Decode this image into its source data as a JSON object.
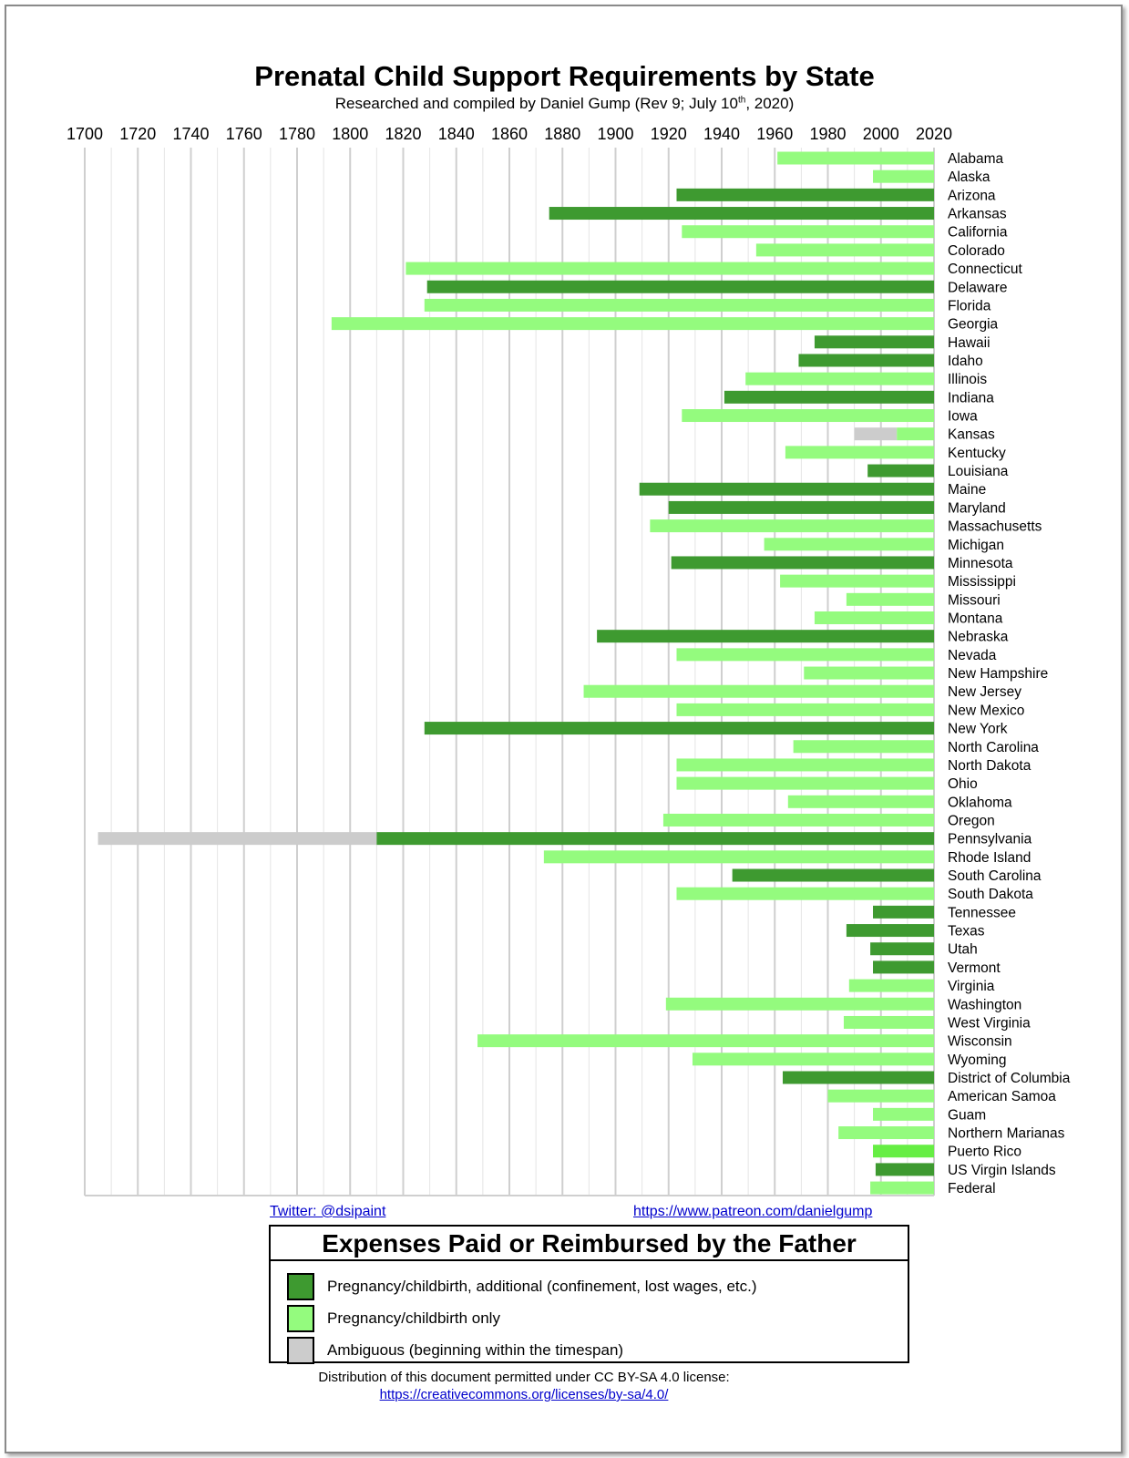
{
  "colors": {
    "additional": "#3e9a30",
    "childbirth_only": "#94fb7e",
    "ambiguous": "#cccccc",
    "puerto_rico": "#66ee44",
    "grid": "#cfcfcf",
    "link": "#0000cc"
  },
  "header": {
    "title": "Prenatal Child Support Requirements by State",
    "subtitle_prefix": "Researched and compiled by Daniel Gump (Rev 9; July 10",
    "subtitle_sup": "th",
    "subtitle_suffix": ", 2020)"
  },
  "links": {
    "twitter": "Twitter: @dsipaint",
    "patreon": "https://www.patreon.com/danielgump"
  },
  "legend": {
    "title": "Expenses Paid or Reimbursed by the Father",
    "items": [
      {
        "label": "Pregnancy/childbirth, additional (confinement, lost wages, etc.)",
        "color": "#3e9a30"
      },
      {
        "label": "Pregnancy/childbirth only",
        "color": "#94fb7e"
      },
      {
        "label": "Ambiguous (beginning within the timespan)",
        "color": "#cccccc"
      }
    ]
  },
  "footer": {
    "license_text": "Distribution of this document permitted under CC BY-SA 4.0 license:",
    "license_url": "https://creativecommons.org/licenses/by-sa/4.0/"
  },
  "chart_data": {
    "type": "bar",
    "orientation": "horizontal",
    "title": "Prenatal Child Support Requirements by State",
    "xlim": [
      1700,
      2020
    ],
    "x_ticks": [
      1700,
      1720,
      1740,
      1760,
      1780,
      1800,
      1820,
      1840,
      1860,
      1880,
      1900,
      1920,
      1940,
      1960,
      1980,
      2000,
      2020
    ],
    "x_minor_step": 10,
    "x_axis_position": "top",
    "grid": true,
    "categories": [
      "Alabama",
      "Alaska",
      "Arizona",
      "Arkansas",
      "California",
      "Colorado",
      "Connecticut",
      "Delaware",
      "Florida",
      "Georgia",
      "Hawaii",
      "Idaho",
      "Illinois",
      "Indiana",
      "Iowa",
      "Kansas",
      "Kentucky",
      "Louisiana",
      "Maine",
      "Maryland",
      "Massachusetts",
      "Michigan",
      "Minnesota",
      "Mississippi",
      "Missouri",
      "Montana",
      "Nebraska",
      "Nevada",
      "New Hampshire",
      "New Jersey",
      "New Mexico",
      "New York",
      "North Carolina",
      "North Dakota",
      "Ohio",
      "Oklahoma",
      "Oregon",
      "Pennsylvania",
      "Rhode Island",
      "South Carolina",
      "South Dakota",
      "Tennessee",
      "Texas",
      "Utah",
      "Vermont",
      "Virginia",
      "Washington",
      "West Virginia",
      "Wisconsin",
      "Wyoming",
      "District of Columbia",
      "American Samoa",
      "Guam",
      "Northern Marianas",
      "Puerto Rico",
      "US Virgin Islands",
      "Federal"
    ],
    "bars": [
      {
        "state": "Alabama",
        "start": 1961,
        "type": "childbirth_only"
      },
      {
        "state": "Alaska",
        "start": 1997,
        "type": "childbirth_only"
      },
      {
        "state": "Arizona",
        "start": 1923,
        "type": "additional"
      },
      {
        "state": "Arkansas",
        "start": 1875,
        "type": "additional"
      },
      {
        "state": "California",
        "start": 1925,
        "type": "childbirth_only"
      },
      {
        "state": "Colorado",
        "start": 1953,
        "type": "childbirth_only"
      },
      {
        "state": "Connecticut",
        "start": 1821,
        "type": "childbirth_only"
      },
      {
        "state": "Delaware",
        "start": 1829,
        "type": "additional"
      },
      {
        "state": "Florida",
        "start": 1828,
        "type": "childbirth_only"
      },
      {
        "state": "Georgia",
        "start": 1793,
        "type": "childbirth_only"
      },
      {
        "state": "Hawaii",
        "start": 1975,
        "type": "additional"
      },
      {
        "state": "Idaho",
        "start": 1969,
        "type": "additional"
      },
      {
        "state": "Illinois",
        "start": 1949,
        "type": "childbirth_only"
      },
      {
        "state": "Indiana",
        "start": 1941,
        "type": "additional"
      },
      {
        "state": "Iowa",
        "start": 1925,
        "type": "childbirth_only"
      },
      {
        "state": "Kansas",
        "start": 2006,
        "type": "childbirth_only",
        "ambiguous_from": 1990
      },
      {
        "state": "Kentucky",
        "start": 1964,
        "type": "childbirth_only"
      },
      {
        "state": "Louisiana",
        "start": 1995,
        "type": "additional"
      },
      {
        "state": "Maine",
        "start": 1909,
        "type": "additional"
      },
      {
        "state": "Maryland",
        "start": 1920,
        "type": "additional"
      },
      {
        "state": "Massachusetts",
        "start": 1913,
        "type": "childbirth_only"
      },
      {
        "state": "Michigan",
        "start": 1956,
        "type": "childbirth_only"
      },
      {
        "state": "Minnesota",
        "start": 1921,
        "type": "additional"
      },
      {
        "state": "Mississippi",
        "start": 1962,
        "type": "childbirth_only"
      },
      {
        "state": "Missouri",
        "start": 1987,
        "type": "childbirth_only"
      },
      {
        "state": "Montana",
        "start": 1975,
        "type": "childbirth_only"
      },
      {
        "state": "Nebraska",
        "start": 1893,
        "type": "additional"
      },
      {
        "state": "Nevada",
        "start": 1923,
        "type": "childbirth_only"
      },
      {
        "state": "New Hampshire",
        "start": 1971,
        "type": "childbirth_only"
      },
      {
        "state": "New Jersey",
        "start": 1888,
        "type": "childbirth_only"
      },
      {
        "state": "New Mexico",
        "start": 1923,
        "type": "childbirth_only"
      },
      {
        "state": "New York",
        "start": 1828,
        "type": "additional"
      },
      {
        "state": "North Carolina",
        "start": 1967,
        "type": "childbirth_only"
      },
      {
        "state": "North Dakota",
        "start": 1923,
        "type": "childbirth_only"
      },
      {
        "state": "Ohio",
        "start": 1923,
        "type": "childbirth_only"
      },
      {
        "state": "Oklahoma",
        "start": 1965,
        "type": "childbirth_only"
      },
      {
        "state": "Oregon",
        "start": 1918,
        "type": "childbirth_only"
      },
      {
        "state": "Pennsylvania",
        "start": 1810,
        "type": "additional",
        "ambiguous_from": 1705
      },
      {
        "state": "Rhode Island",
        "start": 1873,
        "type": "childbirth_only"
      },
      {
        "state": "South Carolina",
        "start": 1944,
        "type": "additional"
      },
      {
        "state": "South Dakota",
        "start": 1923,
        "type": "childbirth_only"
      },
      {
        "state": "Tennessee",
        "start": 1997,
        "type": "additional"
      },
      {
        "state": "Texas",
        "start": 1987,
        "type": "additional"
      },
      {
        "state": "Utah",
        "start": 1996,
        "type": "additional"
      },
      {
        "state": "Vermont",
        "start": 1997,
        "type": "additional"
      },
      {
        "state": "Virginia",
        "start": 1988,
        "type": "childbirth_only"
      },
      {
        "state": "Washington",
        "start": 1919,
        "type": "childbirth_only"
      },
      {
        "state": "West Virginia",
        "start": 1986,
        "type": "childbirth_only"
      },
      {
        "state": "Wisconsin",
        "start": 1848,
        "type": "childbirth_only"
      },
      {
        "state": "Wyoming",
        "start": 1929,
        "type": "childbirth_only"
      },
      {
        "state": "District of Columbia",
        "start": 1963,
        "type": "additional"
      },
      {
        "state": "American Samoa",
        "start": 1980,
        "type": "childbirth_only"
      },
      {
        "state": "Guam",
        "start": 1997,
        "type": "childbirth_only"
      },
      {
        "state": "Northern Marianas",
        "start": 1984,
        "type": "childbirth_only"
      },
      {
        "state": "Puerto Rico",
        "start": 1997,
        "type": "puerto_rico"
      },
      {
        "state": "US Virgin Islands",
        "start": 1998,
        "type": "additional"
      },
      {
        "state": "Federal",
        "start": 1996,
        "type": "childbirth_only"
      }
    ],
    "end_year": 2020
  }
}
